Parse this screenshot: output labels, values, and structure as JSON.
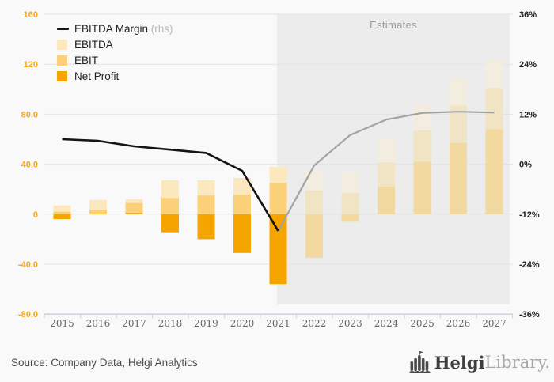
{
  "chart": {
    "legend": [
      {
        "key": "margin",
        "label": "EBITDA Margin",
        "suffix": " (rhs)",
        "swatch": "line"
      },
      {
        "key": "ebitda",
        "label": "EBITDA",
        "suffix": "",
        "swatch": "ebitda"
      },
      {
        "key": "ebit",
        "label": "EBIT",
        "suffix": "",
        "swatch": "ebit"
      },
      {
        "key": "net",
        "label": "Net Profit",
        "suffix": "",
        "swatch": "net"
      }
    ],
    "estimates_label": "Estimates",
    "left_axis_ticks": [
      "160",
      "120",
      "80.0",
      "40.0",
      "0",
      "-40.0",
      "-80.0"
    ],
    "right_axis_ticks": [
      "36%",
      "24%",
      "12%",
      "0%",
      "-12%",
      "-24%",
      "-36%"
    ]
  },
  "chart_data": {
    "type": "bar+line",
    "categories": [
      2015,
      2016,
      2017,
      2018,
      2019,
      2020,
      2021,
      2022,
      2023,
      2024,
      2025,
      2026,
      2027
    ],
    "series": [
      {
        "key": "margin",
        "name": "EBITDA Margin (rhs)",
        "type": "line",
        "axis": "right",
        "unit": "%",
        "values": [
          6.0,
          5.6,
          4.3,
          3.5,
          2.7,
          -1.6,
          -16.0,
          -0.3,
          7.0,
          10.7,
          12.3,
          12.6,
          12.4
        ]
      },
      {
        "key": "ebitda",
        "name": "EBITDA",
        "type": "bar",
        "axis": "left",
        "values": [
          7,
          11.5,
          12,
          27,
          27,
          29,
          38,
          35,
          34,
          60,
          88,
          109,
          124
        ]
      },
      {
        "key": "ebit",
        "name": "EBIT",
        "type": "bar",
        "axis": "left",
        "values": [
          2,
          3.5,
          9,
          13,
          15,
          15.5,
          25,
          19,
          17,
          41.5,
          67,
          87,
          101
        ]
      },
      {
        "key": "net",
        "name": "Net Profit",
        "type": "bar",
        "axis": "left",
        "values": [
          -4,
          0.5,
          1,
          -14.5,
          -20,
          -31,
          -56,
          -35,
          -6,
          22,
          42,
          57,
          68
        ]
      }
    ],
    "estimates_start_year": 2022,
    "left_axis_range": [
      -80,
      160
    ],
    "right_axis_range": [
      -36,
      36
    ],
    "grid": true,
    "legend_position": "top-left",
    "bar_style": "overlaid"
  },
  "colors": {
    "background": "#f9f9f9",
    "estimates_bg": "#ececec",
    "grid": "#e3e3e3",
    "axis_line": "#c9d5e8",
    "left_tick_color": "#f4a81d",
    "right_tick_color": "#1c1c1c",
    "line_actual": "#141414",
    "line_estimate": "#a3a3a3",
    "bars_actual": {
      "ebitda": "#fce8bf",
      "ebit": "#fad178",
      "net": "#f6a400"
    },
    "bars_estimate": {
      "ebitda": "#f3eddf",
      "ebit": "#f1e4c5",
      "net": "#f1d99f"
    }
  },
  "footer": {
    "source": "Source: Company Data, Helgi Analytics",
    "logo_helgi": "Helgi",
    "logo_library": "Library."
  }
}
